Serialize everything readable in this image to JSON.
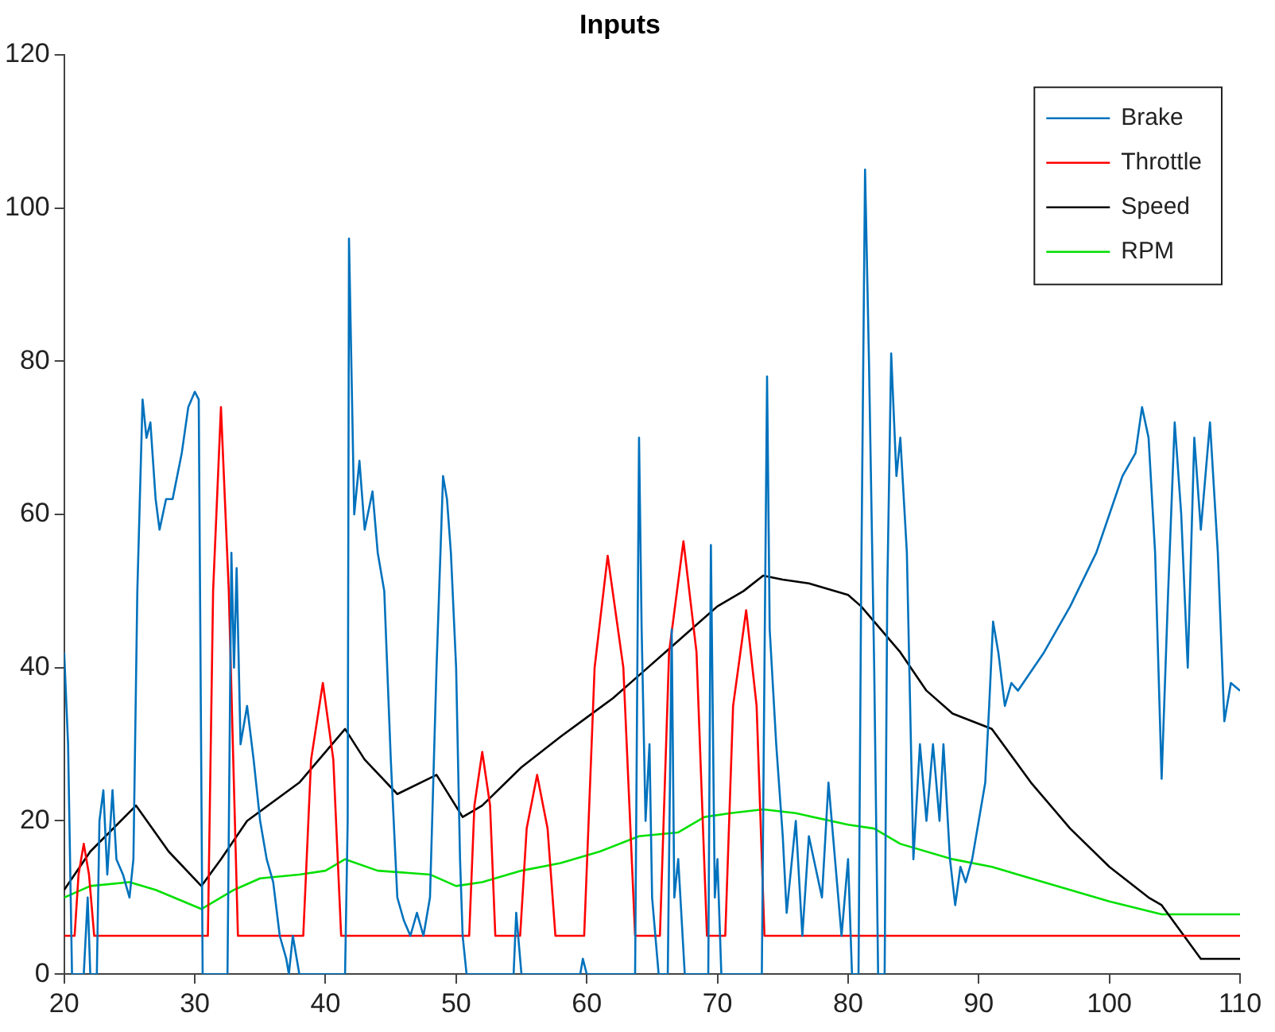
{
  "chart_data": {
    "type": "line",
    "title": "Inputs",
    "xlim": [
      20,
      110
    ],
    "ylim": [
      0,
      120
    ],
    "xticks": [
      20,
      30,
      40,
      50,
      60,
      70,
      80,
      90,
      100,
      110
    ],
    "yticks": [
      0,
      20,
      40,
      60,
      80,
      100,
      120
    ],
    "grid": false,
    "legend": "top right",
    "marker": "none",
    "line_style": "solid",
    "series": [
      {
        "name": "Brake",
        "color": "#0072bd",
        "x": [
          20,
          20.3,
          20.6,
          21.5,
          21.8,
          22,
          22.5,
          22.7,
          23,
          23.3,
          23.7,
          24,
          24.5,
          25,
          25.3,
          25.6,
          26,
          26.3,
          26.6,
          27,
          27.3,
          27.8,
          28.3,
          29,
          29.5,
          30,
          30.3,
          30.6,
          32.5,
          32.8,
          33,
          33.2,
          33.5,
          34,
          34.5,
          35,
          35.5,
          36,
          36.5,
          37,
          37.2,
          37.5,
          38,
          41.5,
          41.7,
          41.8,
          42.2,
          42.6,
          43,
          43.6,
          44,
          44.5,
          45,
          45.5,
          46,
          46.5,
          47,
          47.5,
          48,
          48.5,
          49,
          49.3,
          49.6,
          50,
          50.3,
          50.5,
          50.8,
          54.4,
          54.6,
          55,
          59.5,
          59.7,
          60,
          63.7,
          64,
          64.2,
          64.5,
          64.8,
          65,
          65.5,
          66.2,
          66.5,
          66.7,
          67,
          67.5,
          69.3,
          69.5,
          69.8,
          70,
          70.3,
          73.4,
          73.6,
          73.8,
          74,
          74.5,
          75,
          75.3,
          76,
          76.5,
          77,
          78,
          78.5,
          79,
          79.5,
          80,
          80.3,
          80.8,
          81,
          81.3,
          81.6,
          82,
          82.3,
          82.8,
          83,
          83.3,
          83.7,
          84,
          84.5,
          85,
          85.5,
          86,
          86.5,
          87,
          87.3,
          87.8,
          88.2,
          88.6,
          89,
          89.5,
          90,
          90.5,
          90.8,
          91.1,
          91.5,
          92,
          92.5,
          93,
          95,
          97,
          99,
          100,
          101,
          102,
          102.5,
          103,
          103.5,
          104,
          104.5,
          105,
          105.5,
          106,
          106.5,
          107,
          107.7,
          108.3,
          108.8,
          109.3,
          110
        ],
        "values": [
          42,
          30,
          0,
          0,
          10,
          0,
          0,
          20,
          24,
          13,
          24,
          15,
          13,
          10,
          15,
          50,
          75,
          70,
          72,
          62,
          58,
          62,
          62,
          68,
          74,
          76,
          75,
          0,
          0,
          55,
          40,
          53,
          30,
          35,
          28,
          20,
          15,
          12,
          5,
          2,
          0,
          5,
          0,
          0,
          20,
          96,
          60,
          67,
          58,
          63,
          55,
          50,
          28,
          10,
          7,
          5,
          8,
          5,
          10,
          40,
          65,
          62,
          55,
          40,
          15,
          5,
          0,
          0,
          8,
          0,
          0,
          2,
          0,
          0,
          70,
          45,
          20,
          30,
          10,
          0,
          0,
          45,
          10,
          15,
          0,
          0,
          56,
          10,
          15,
          0,
          0,
          40,
          78,
          45,
          30,
          18,
          8,
          20,
          5,
          18,
          10,
          25,
          15,
          5,
          15,
          0,
          0,
          50,
          105,
          80,
          40,
          0,
          0,
          50,
          81,
          65,
          70,
          55,
          15,
          30,
          20,
          30,
          20,
          30,
          15,
          9,
          14,
          12,
          15,
          20,
          25,
          35,
          46,
          42,
          35,
          38,
          37,
          42,
          48,
          55,
          60,
          65,
          68,
          74,
          70,
          55,
          25.5,
          50,
          72,
          60,
          40,
          70,
          58,
          72,
          55,
          33,
          38,
          37
        ]
      },
      {
        "name": "Throttle",
        "color": "#ff0000",
        "x": [
          20,
          20.8,
          21.1,
          21.5,
          21.9,
          22.3,
          31,
          31.4,
          32,
          32.6,
          33.3,
          38.3,
          38.9,
          39.8,
          40.6,
          41.2,
          51,
          51.4,
          52,
          52.6,
          53,
          54.9,
          55.4,
          56.2,
          57,
          57.6,
          59.8,
          60.6,
          61.6,
          62.8,
          63.7,
          65.6,
          66.3,
          67.4,
          68.4,
          69.2,
          70.6,
          71.2,
          72.2,
          73,
          73.6,
          110
        ],
        "values": [
          5,
          5,
          13,
          17,
          13,
          5,
          5,
          50,
          74,
          50,
          5,
          5,
          28,
          38,
          28,
          5,
          5,
          22,
          29,
          22,
          5,
          5,
          19,
          26,
          19,
          5,
          5,
          40,
          54.6,
          40,
          5,
          5,
          42,
          56.5,
          42,
          5,
          5,
          35,
          47.5,
          35,
          5,
          5
        ]
      },
      {
        "name": "Speed",
        "color": "#000000",
        "x": [
          20,
          22,
          25.5,
          28,
          30.5,
          32,
          34,
          38,
          41.5,
          43,
          45.5,
          48.5,
          50.5,
          52,
          55,
          58,
          60,
          62,
          64,
          66,
          68,
          70,
          72,
          73.5,
          75,
          77,
          80,
          81,
          82,
          84,
          86,
          88,
          91,
          94,
          97,
          100,
          103,
          104,
          107,
          110
        ],
        "values": [
          11,
          16,
          22,
          16,
          11.5,
          15,
          20,
          25,
          32,
          28,
          23.5,
          26,
          20.5,
          22,
          27,
          31,
          33.5,
          36,
          39,
          42,
          45,
          48,
          50,
          52,
          51.5,
          51,
          49.5,
          48,
          46,
          42,
          37,
          34,
          32,
          25,
          19,
          14,
          10,
          9,
          2,
          2
        ]
      },
      {
        "name": "RPM",
        "color": "#00e000",
        "x": [
          20,
          22,
          25,
          27,
          30.5,
          33,
          35,
          38,
          40,
          41.5,
          44,
          48,
          50,
          52,
          55,
          58,
          61,
          64,
          67,
          69,
          71,
          73.5,
          76,
          80,
          82,
          84,
          88,
          91,
          96,
          100,
          104,
          110
        ],
        "values": [
          10,
          11.5,
          12,
          11,
          8.5,
          11,
          12.5,
          13,
          13.5,
          15,
          13.5,
          13,
          11.5,
          12,
          13.5,
          14.5,
          16,
          18,
          18.5,
          20.5,
          21,
          21.5,
          21,
          19.5,
          19,
          17,
          15,
          14,
          11.5,
          9.5,
          7.8,
          7.8
        ]
      }
    ]
  }
}
